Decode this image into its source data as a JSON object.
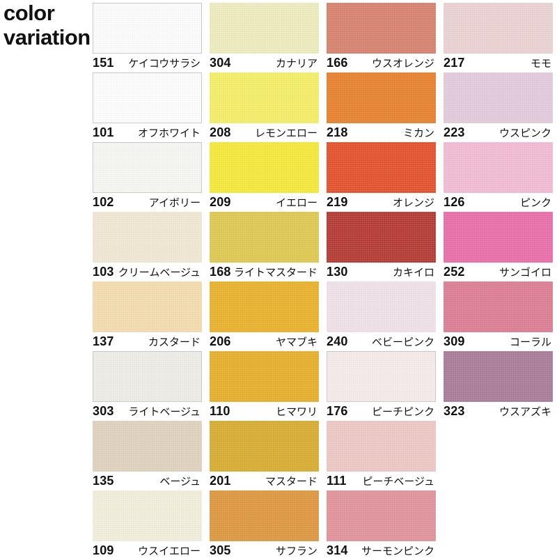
{
  "header": {
    "line1": "color",
    "line2": "variation"
  },
  "palette_rows": [
    [
      {
        "code": "151",
        "name": "ケイコウサラシ",
        "color": "#fdfdfd"
      },
      {
        "code": "304",
        "name": "カナリア",
        "color": "#eeedbe"
      },
      {
        "code": "166",
        "name": "ウスオレンジ",
        "color": "#d8836f"
      },
      {
        "code": "217",
        "name": "モモ",
        "color": "#ecd2d3"
      }
    ],
    [
      {
        "code": "101",
        "name": "オフホワイト",
        "color": "#fefefe"
      },
      {
        "code": "208",
        "name": "レモンエロー",
        "color": "#f4ef68"
      },
      {
        "code": "218",
        "name": "ミカン",
        "color": "#e8832f"
      },
      {
        "code": "223",
        "name": "ウスピンク",
        "color": "#e3cbdc"
      }
    ],
    [
      {
        "code": "102",
        "name": "アイボリー",
        "color": "#f7f7f3"
      },
      {
        "code": "209",
        "name": "イエロー",
        "color": "#f6e93c"
      },
      {
        "code": "219",
        "name": "オレンジ",
        "color": "#e4522c"
      },
      {
        "code": "126",
        "name": "ピンク",
        "color": "#f2bcd4"
      }
    ],
    [
      {
        "code": "103",
        "name": "クリームベージュ",
        "color": "#f1e8d4"
      },
      {
        "code": "168",
        "name": "ライトマスタード",
        "color": "#deca52"
      },
      {
        "code": "130",
        "name": "カキイロ",
        "color": "#b53b34"
      },
      {
        "code": "252",
        "name": "サンゴイロ",
        "color": "#eb6fa9"
      }
    ],
    [
      {
        "code": "137",
        "name": "カスタード",
        "color": "#f4dcae"
      },
      {
        "code": "206",
        "name": "ヤマブキ",
        "color": "#eab32d"
      },
      {
        "code": "240",
        "name": "ベビーピンク",
        "color": "#f0e2ea"
      },
      {
        "code": "309",
        "name": "コーラル",
        "color": "#dd7e94"
      }
    ],
    [
      {
        "code": "303",
        "name": "ライトベージュ",
        "color": "#efede7"
      },
      {
        "code": "110",
        "name": "ヒマワリ",
        "color": "#e8b02c"
      },
      {
        "code": "176",
        "name": "ピーチピンク",
        "color": "#f6eceb"
      },
      {
        "code": "323",
        "name": "ウスアズキ",
        "color": "#aa7d99"
      }
    ],
    [
      {
        "code": "135",
        "name": "ベージュ",
        "color": "#e0d2bf"
      },
      {
        "code": "201",
        "name": "マスタード",
        "color": "#d9ad33"
      },
      {
        "code": "111",
        "name": "ピーチベージュ",
        "color": "#eec8c5"
      }
    ],
    [
      {
        "code": "109",
        "name": "ウスイエロー",
        "color": "#f2efdc"
      },
      {
        "code": "305",
        "name": "サフラン",
        "color": "#de9840"
      },
      {
        "code": "314",
        "name": "サーモンピンク",
        "color": "#e2949c"
      }
    ]
  ]
}
